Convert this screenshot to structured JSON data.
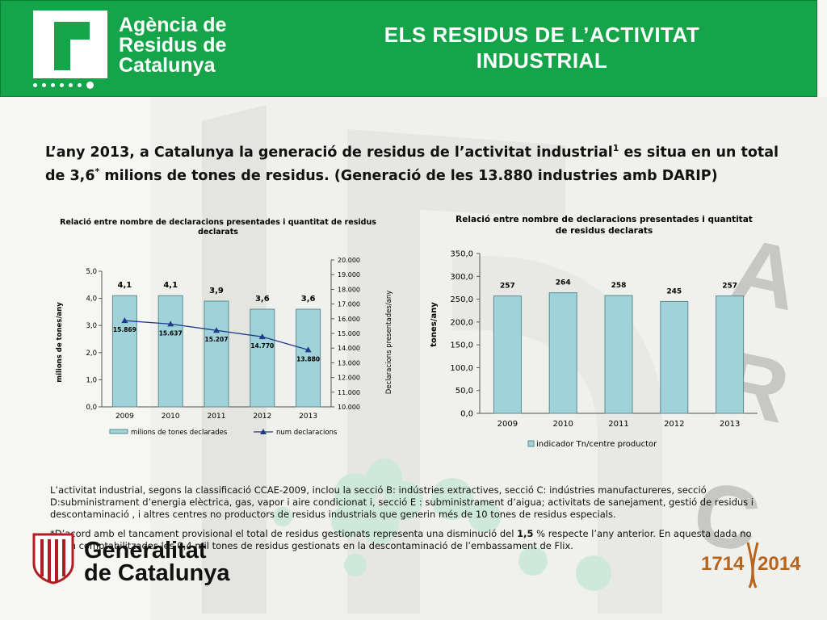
{
  "header": {
    "agency_line1": "Agència de",
    "agency_line2": "Residus de",
    "agency_line3": "Catalunya",
    "title_line1": "ELS RESIDUS DE L’ACTIVITAT",
    "title_line2": "INDUSTRIAL",
    "bg_color": "#16a44a"
  },
  "lead": {
    "part1": "L’any 2013, a Catalunya la generació de residus de l’activitat industrial",
    "sup1": "1",
    "part2": " es situa en un total de 3,6",
    "sup2": "*",
    "part3": " milions de tones de residus. (Generació de les 13.880 industries amb DARIP)"
  },
  "chart_data": [
    {
      "type": "bar",
      "title_line1": "Relació entre nombre de declaracions presentades i quantitat  de residus",
      "title_line2": "declarats",
      "categories": [
        "2009",
        "2010",
        "2011",
        "2012",
        "2013"
      ],
      "series": [
        {
          "name": "milions de tones declarades",
          "type": "bar",
          "axis": "left",
          "values": [
            4.1,
            4.1,
            3.9,
            3.6,
            3.6
          ],
          "labels": [
            "4,1",
            "4,1",
            "3,9",
            "3,6",
            "3,6"
          ],
          "color": "#9fd3d9"
        },
        {
          "name": "num declaracions",
          "type": "line",
          "axis": "right",
          "values": [
            15869,
            15637,
            15207,
            14770,
            13880
          ],
          "labels": [
            "15.869",
            "15.637",
            "15.207",
            "14.770",
            "13.880"
          ],
          "color": "#1f3b8a"
        }
      ],
      "ylabel": "milions de tones/any",
      "y2label": "Declaracions presentades/any",
      "ylim": [
        0,
        5
      ],
      "yticks": [
        "0,0",
        "1,0",
        "2,0",
        "3,0",
        "4,0",
        "5,0"
      ],
      "y2lim": [
        10000,
        20000
      ],
      "y2ticks": [
        "10.000",
        "11.000",
        "12.000",
        "13.000",
        "14.000",
        "15.000",
        "16.000",
        "17.000",
        "18.000",
        "19.000",
        "20.000"
      ],
      "legend": "bottom"
    },
    {
      "type": "bar",
      "title_line1": "Relació entre nombre de declaracions presentades i quantitat",
      "title_line2": "de residus declarats",
      "categories": [
        "2009",
        "2010",
        "2011",
        "2012",
        "2013"
      ],
      "series": [
        {
          "name": "indicador Tn/centre productor",
          "values": [
            257,
            264,
            258,
            245,
            257
          ],
          "labels": [
            "257",
            "264",
            "258",
            "245",
            "257"
          ],
          "color": "#9fd3d9"
        }
      ],
      "ylabel": "tones/any",
      "ylim": [
        0,
        350
      ],
      "yticks": [
        "0,0",
        "50,0",
        "100,0",
        "150,0",
        "200,0",
        "250,0",
        "300,0",
        "350,0"
      ],
      "legend": "bottom"
    }
  ],
  "notes": {
    "note1": "L’activitat industrial, segons la classificació CCAE-2009, inclou la secció  B: indústries extractives, secció C: indústries manufactureres, secció D:subministrament  d’energia elèctrica, gas, vapor i aire condicionat i, secció E : subministrament d’aigua; activitats de sanejament, gestió de residus i descontaminació , i altres centres no productors de residus industrials que generin més de 10 tones de residus especials.",
    "note2_part1": "*D’acord amb el tancament provisional el total de residus gestionats representa una disminució del ",
    "note2_bold": "1,5",
    "note2_part2": " % respecte l’any anterior. En aquesta dada no estan comptabilitzades les 0,4 mil tones de residus gestionats en la descontaminació de l’embassament de Flix."
  },
  "footer": {
    "gen_line1": "Generalitat",
    "gen_line2": "de Catalunya",
    "anniv_left": "1714",
    "anniv_right": "2014",
    "anniv_color": "#b5651d"
  }
}
